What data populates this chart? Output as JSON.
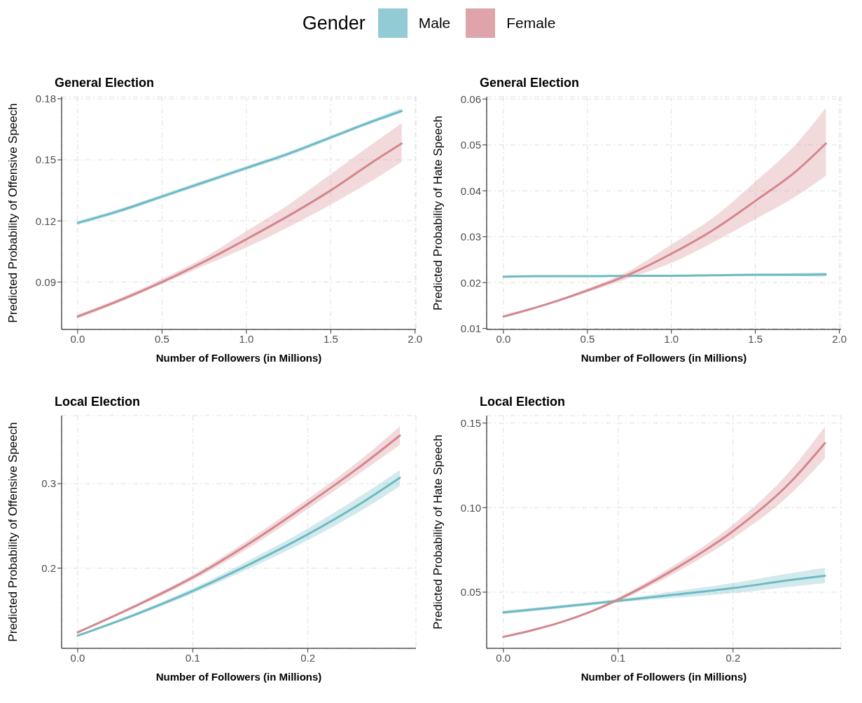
{
  "chart_data": [
    {
      "type": "line",
      "title": "General Election",
      "xlabel": "Number of Followers (in Millions)",
      "ylabel": "Predicted Probability of Offensive Speech",
      "legend": "top",
      "legend_title": "Gender",
      "grid": true,
      "x": [
        0,
        0.25,
        0.5,
        0.75,
        1.0,
        1.25,
        1.5,
        1.75,
        1.92
      ],
      "xlim": [
        -0.095,
        2.005
      ],
      "xticks": [
        {
          "value": 0,
          "label": "0.0"
        },
        0.5,
        {
          "value": 1,
          "label": "1.0"
        },
        1.5,
        {
          "value": 2,
          "label": "2.0"
        }
      ],
      "ylim": [
        0.0667,
        0.181
      ],
      "yticks": [
        0.09,
        0.12,
        0.15,
        0.18
      ],
      "series": [
        {
          "name": "Male",
          "color": "#6dbac4",
          "values": [
            0.119,
            0.125,
            0.132,
            0.139,
            0.146,
            0.153,
            0.161,
            0.169,
            0.174
          ],
          "lower": [
            0.118,
            0.124,
            0.131,
            0.138,
            0.145,
            0.152,
            0.16,
            0.168,
            0.173
          ],
          "upper": [
            0.12,
            0.126,
            0.133,
            0.14,
            0.147,
            0.154,
            0.162,
            0.17,
            0.1755
          ]
        },
        {
          "name": "Female",
          "color": "#d4868c",
          "values": [
            0.073,
            0.081,
            0.09,
            0.1,
            0.111,
            0.1225,
            0.135,
            0.149,
            0.158
          ],
          "lower": [
            0.072,
            0.08,
            0.089,
            0.098,
            0.107,
            0.117,
            0.128,
            0.14,
            0.149
          ],
          "upper": [
            0.074,
            0.082,
            0.0915,
            0.102,
            0.115,
            0.128,
            0.143,
            0.158,
            0.168
          ]
        }
      ]
    },
    {
      "type": "line",
      "title": "General Election",
      "xlabel": "Number of Followers (in Millions)",
      "ylabel": "Predicted Probability of Hate Speech",
      "grid": true,
      "x": [
        0,
        0.25,
        0.5,
        0.75,
        1.0,
        1.25,
        1.5,
        1.75,
        1.92
      ],
      "xlim": [
        -0.1,
        2.01
      ],
      "xticks": [
        {
          "value": 0,
          "label": "0.0"
        },
        0.5,
        {
          "value": 1,
          "label": "1.0"
        },
        1.5,
        {
          "value": 2,
          "label": "2.0"
        }
      ],
      "ylim": [
        0.0098,
        0.0605
      ],
      "yticks": [
        0.01,
        0.02,
        0.03,
        0.04,
        0.05,
        0.06
      ],
      "series": [
        {
          "color": "#6dbac4",
          "values": [
            0.0213,
            0.0214,
            0.0214,
            0.0215,
            0.0215,
            0.0216,
            0.0217,
            0.0217,
            0.0218
          ],
          "lower": [
            0.0211,
            0.0212,
            0.0213,
            0.0214,
            0.0214,
            0.0214,
            0.0214,
            0.0214,
            0.0213
          ],
          "upper": [
            0.0215,
            0.0215,
            0.0216,
            0.0216,
            0.0217,
            0.0218,
            0.0219,
            0.0221,
            0.0222
          ]
        },
        {
          "color": "#d4868c",
          "values": [
            0.0126,
            0.0152,
            0.0183,
            0.0218,
            0.0263,
            0.0315,
            0.0378,
            0.0445,
            0.0503
          ],
          "lower": [
            0.0124,
            0.015,
            0.0179,
            0.021,
            0.0243,
            0.0288,
            0.0338,
            0.039,
            0.0433
          ],
          "upper": [
            0.0128,
            0.0154,
            0.0187,
            0.0226,
            0.0283,
            0.0342,
            0.042,
            0.0505,
            0.0581
          ]
        }
      ]
    },
    {
      "type": "line",
      "title": "Local Election",
      "xlabel": "Number of Followers (in Millions)",
      "ylabel": "Predicted Probability of Offensive Speech",
      "grid": true,
      "x": [
        0,
        0.05,
        0.1,
        0.15,
        0.2,
        0.25,
        0.28
      ],
      "xlim": [
        -0.014,
        0.294
      ],
      "xticks": [
        {
          "value": 0,
          "label": "0.0"
        },
        0.1,
        0.2
      ],
      "ylim": [
        0.105,
        0.3806
      ],
      "yticks": [
        0.2,
        0.3
      ],
      "series": [
        {
          "color": "#6dbac4",
          "values": [
            0.12,
            0.145,
            0.173,
            0.205,
            0.24,
            0.28,
            0.307
          ],
          "lower": [
            0.119,
            0.143,
            0.17,
            0.2,
            0.233,
            0.271,
            0.297
          ],
          "upper": [
            0.121,
            0.147,
            0.176,
            0.21,
            0.247,
            0.289,
            0.316
          ]
        },
        {
          "color": "#d4868c",
          "values": [
            0.124,
            0.155,
            0.189,
            0.23,
            0.276,
            0.325,
            0.357
          ],
          "lower": [
            0.123,
            0.153,
            0.186,
            0.225,
            0.27,
            0.317,
            0.346
          ],
          "upper": [
            0.125,
            0.157,
            0.192,
            0.235,
            0.282,
            0.333,
            0.368
          ]
        }
      ]
    },
    {
      "type": "line",
      "title": "Local Election",
      "xlabel": "Number of Followers (in Millions)",
      "ylabel": "Predicted Probability of Hate Speech",
      "grid": true,
      "x": [
        0,
        0.025,
        0.05,
        0.075,
        0.1,
        0.15,
        0.2,
        0.25,
        0.28
      ],
      "xlim": [
        -0.0145,
        0.294
      ],
      "xticks": [
        {
          "value": 0,
          "label": "0.0"
        },
        0.1,
        0.2
      ],
      "ylim": [
        0.0168,
        0.1544
      ],
      "yticks": [
        0.05,
        {
          "value": 0.1,
          "label": "0.10"
        },
        0.15
      ],
      "series": [
        {
          "color": "#6dbac4",
          "values": [
            0.038,
            0.0397,
            0.0414,
            0.0431,
            0.0449,
            0.0486,
            0.0524,
            0.0572,
            0.0597
          ],
          "lower": [
            0.037,
            0.0387,
            0.0404,
            0.0421,
            0.0439,
            0.0466,
            0.0494,
            0.0532,
            0.0553
          ],
          "upper": [
            0.039,
            0.0407,
            0.0424,
            0.0441,
            0.0459,
            0.0506,
            0.0554,
            0.0612,
            0.0645
          ]
        },
        {
          "color": "#d4868c",
          "values": [
            0.0236,
            0.0275,
            0.0322,
            0.0382,
            0.0457,
            0.064,
            0.0861,
            0.115,
            0.1381
          ],
          "lower": [
            0.0231,
            0.027,
            0.0317,
            0.0376,
            0.0447,
            0.0615,
            0.082,
            0.108,
            0.1292
          ],
          "upper": [
            0.0241,
            0.028,
            0.0327,
            0.0388,
            0.0467,
            0.0665,
            0.09,
            0.122,
            0.148
          ]
        }
      ]
    }
  ]
}
